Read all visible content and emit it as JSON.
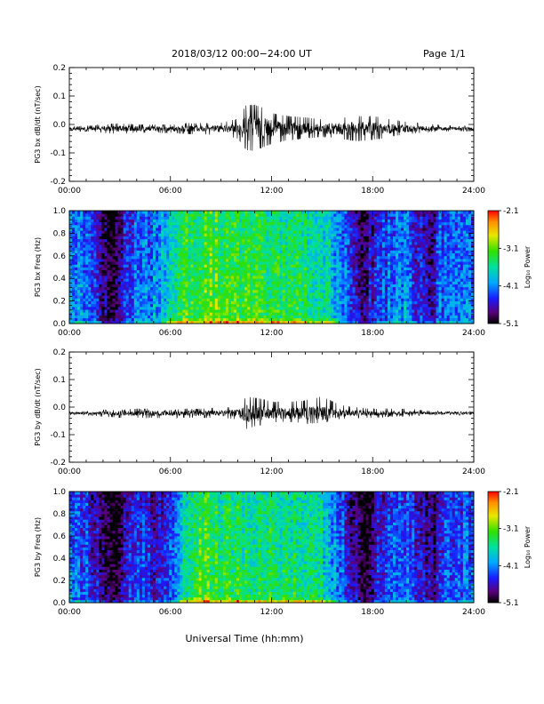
{
  "header": {
    "title": "2018/03/12  00:00−24:00 UT",
    "page": "Page 1/1"
  },
  "xlabel": "Universal Time (hh:mm)",
  "chart_data": [
    {
      "type": "line",
      "title": "",
      "ylabel": "PG3 bx dB/dt (nT/sec)",
      "xlim": [
        0,
        24
      ],
      "ylim": [
        -0.2,
        0.2
      ],
      "yticks": [
        "-0.2",
        "-0.1",
        "0.0",
        "0.1",
        "0.2"
      ],
      "xticks": [
        "00:00",
        "06:00",
        "12:00",
        "18:00",
        "24:00"
      ],
      "series_color": "#000000",
      "baseline": -0.015,
      "envelope": {
        "x": [
          0,
          1,
          2,
          3,
          4,
          5,
          6,
          7,
          8,
          9,
          10,
          10.5,
          11,
          11.5,
          12,
          13,
          14,
          15,
          16,
          17,
          18,
          19,
          20,
          21,
          22,
          23,
          24
        ],
        "y_max": [
          -0.005,
          -0.004,
          0.0,
          0.005,
          0.0,
          0.0,
          0.0,
          0.005,
          0.005,
          0.008,
          0.02,
          0.07,
          0.07,
          0.06,
          0.04,
          0.03,
          0.025,
          0.02,
          0.025,
          0.03,
          0.03,
          0.02,
          0.01,
          0.005,
          0.0,
          -0.005,
          -0.005
        ],
        "y_min": [
          -0.025,
          -0.025,
          -0.03,
          -0.035,
          -0.03,
          -0.03,
          -0.03,
          -0.035,
          -0.035,
          -0.038,
          -0.05,
          -0.09,
          -0.095,
          -0.08,
          -0.07,
          -0.055,
          -0.05,
          -0.045,
          -0.05,
          -0.06,
          -0.055,
          -0.045,
          -0.035,
          -0.03,
          -0.025,
          -0.025,
          -0.025
        ]
      }
    },
    {
      "type": "heatmap",
      "ylabel": "PG3 bx Freq (Hz)",
      "xlim": [
        0,
        24
      ],
      "ylim": [
        0,
        1
      ],
      "yticks": [
        "0.0",
        "0.2",
        "0.4",
        "0.6",
        "0.8",
        "1.0"
      ],
      "xticks": [
        "00:00",
        "06:00",
        "12:00",
        "18:00",
        "24:00"
      ],
      "colorbar": {
        "label": "Log₁₀ Power",
        "ticks": [
          "-2.1",
          "-3.1",
          "-4.1",
          "-5.1"
        ],
        "range": [
          -5.1,
          -2.1
        ]
      },
      "activity_profile": {
        "x": [
          0,
          1,
          2,
          2.5,
          3,
          4,
          5,
          6,
          7,
          8,
          9,
          10,
          11,
          12,
          13,
          14,
          15,
          16,
          17,
          17.5,
          18,
          19,
          20,
          21,
          21.5,
          22,
          23,
          24
        ],
        "level": [
          0.35,
          0.35,
          0.15,
          0.05,
          0.15,
          0.35,
          0.35,
          0.45,
          0.62,
          0.65,
          0.62,
          0.6,
          0.6,
          0.58,
          0.58,
          0.55,
          0.52,
          0.4,
          0.15,
          0.1,
          0.2,
          0.3,
          0.35,
          0.2,
          0.12,
          0.3,
          0.35,
          0.35
        ]
      }
    },
    {
      "type": "line",
      "title": "",
      "ylabel": "PG3 by dB/dt (nT/sec)",
      "xlim": [
        0,
        24
      ],
      "ylim": [
        -0.2,
        0.2
      ],
      "yticks": [
        "-0.2",
        "-0.1",
        "0.0",
        "0.1",
        "0.2"
      ],
      "xticks": [
        "00:00",
        "06:00",
        "12:00",
        "18:00",
        "24:00"
      ],
      "series_color": "#000000",
      "baseline": -0.022,
      "envelope": {
        "x": [
          0,
          1,
          2,
          3,
          4,
          5,
          6,
          7,
          8,
          9,
          10,
          10.5,
          11,
          11.5,
          12,
          13,
          14,
          15,
          16,
          17,
          18,
          19,
          20,
          21,
          22,
          23,
          24
        ],
        "y_max": [
          -0.015,
          -0.015,
          -0.01,
          -0.01,
          -0.005,
          -0.005,
          -0.01,
          -0.005,
          -0.005,
          0.0,
          0.0,
          0.04,
          0.035,
          0.03,
          0.02,
          0.02,
          0.025,
          0.04,
          0.01,
          0.0,
          -0.005,
          -0.005,
          -0.005,
          -0.01,
          -0.015,
          -0.015,
          -0.015
        ],
        "y_min": [
          -0.03,
          -0.03,
          -0.035,
          -0.04,
          -0.04,
          -0.04,
          -0.04,
          -0.04,
          -0.04,
          -0.04,
          -0.045,
          -0.08,
          -0.07,
          -0.065,
          -0.055,
          -0.055,
          -0.06,
          -0.06,
          -0.045,
          -0.04,
          -0.04,
          -0.035,
          -0.035,
          -0.03,
          -0.03,
          -0.03,
          -0.03
        ]
      }
    },
    {
      "type": "heatmap",
      "ylabel": "PG3 by Freq (Hz)",
      "xlim": [
        0,
        24
      ],
      "ylim": [
        0,
        1
      ],
      "yticks": [
        "0.0",
        "0.2",
        "0.4",
        "0.6",
        "0.8",
        "1.0"
      ],
      "xticks": [
        "00:00",
        "06:00",
        "12:00",
        "18:00",
        "24:00"
      ],
      "colorbar": {
        "label": "Log₁₀ Power",
        "ticks": [
          "-2.1",
          "-3.1",
          "-4.1",
          "-5.1"
        ],
        "range": [
          -5.1,
          -2.1
        ]
      },
      "activity_profile": {
        "x": [
          0,
          1,
          2,
          2.5,
          3,
          4,
          5,
          5.5,
          6,
          7,
          8,
          9,
          10,
          11,
          12,
          13,
          14,
          15,
          16,
          17,
          17.5,
          18,
          19,
          20,
          21,
          21.5,
          22,
          23,
          24
        ],
        "level": [
          0.3,
          0.28,
          0.12,
          0.05,
          0.12,
          0.28,
          0.2,
          0.15,
          0.3,
          0.58,
          0.62,
          0.6,
          0.58,
          0.58,
          0.56,
          0.55,
          0.54,
          0.5,
          0.35,
          0.12,
          0.06,
          0.15,
          0.28,
          0.32,
          0.18,
          0.1,
          0.25,
          0.3,
          0.3
        ]
      }
    }
  ]
}
